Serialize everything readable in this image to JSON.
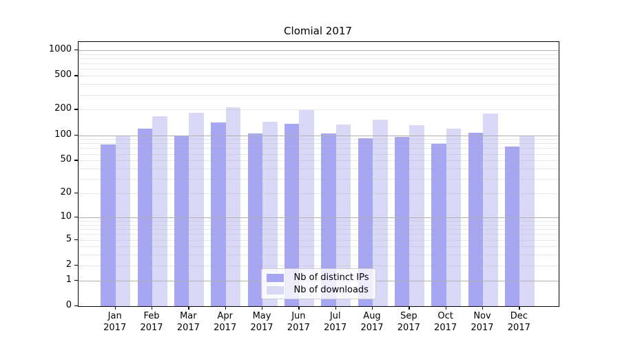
{
  "chart_data": {
    "type": "bar",
    "title": "Clomial 2017",
    "categories": [
      "Jan",
      "Feb",
      "Mar",
      "Apr",
      "May",
      "Jun",
      "Jul",
      "Aug",
      "Sep",
      "Oct",
      "Nov",
      "Dec"
    ],
    "year_label": "2017",
    "series": [
      {
        "name": "Nb of distinct IPs",
        "color": "#a6a6f2",
        "values": [
          78,
          120,
          100,
          141,
          104,
          136,
          105,
          92,
          96,
          79,
          107,
          74
        ]
      },
      {
        "name": "Nb of downloads",
        "color": "#d9d9f7",
        "values": [
          100,
          168,
          184,
          213,
          144,
          199,
          134,
          153,
          131,
          120,
          179,
          100
        ]
      }
    ],
    "scale": "log1p",
    "ylim": [
      0,
      1250
    ],
    "yticks": [
      0,
      1,
      2,
      5,
      10,
      20,
      50,
      100,
      200,
      500,
      1000
    ],
    "major_grid_values": [
      1,
      10,
      100,
      1000
    ],
    "grid": "on",
    "legend_position": "lower center",
    "axis_color": "#000000",
    "major_grid_color": "#b0b0b0"
  }
}
